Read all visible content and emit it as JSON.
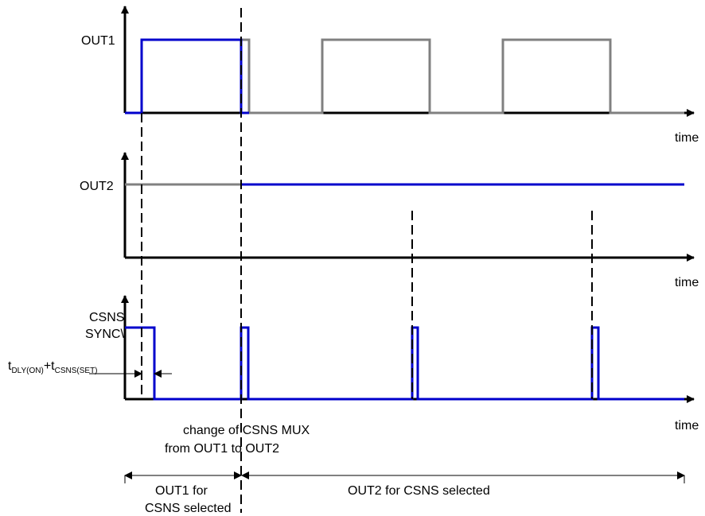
{
  "signals": {
    "out1": "OUT1",
    "out2": "OUT2",
    "csns_line1": "CSNS",
    "csns_line2": "SYNC\\"
  },
  "axes": {
    "time_label": "time"
  },
  "timing_annotation": {
    "t1_main": "t",
    "t1_sub": "DLY(ON)",
    "plus": "+t",
    "t2_sub": "CSNS(SET)"
  },
  "mux_note": {
    "line1": "change of CSNS MUX",
    "line2": "from OUT1 to OUT2"
  },
  "phases": {
    "phase1_line1": "OUT1 for",
    "phase1_line2": "CSNS selected",
    "phase2": "OUT2 for CSNS selected"
  },
  "colors": {
    "selected_trace": "#0000cc",
    "unselected_trace": "#808080",
    "axis": "#000000"
  }
}
